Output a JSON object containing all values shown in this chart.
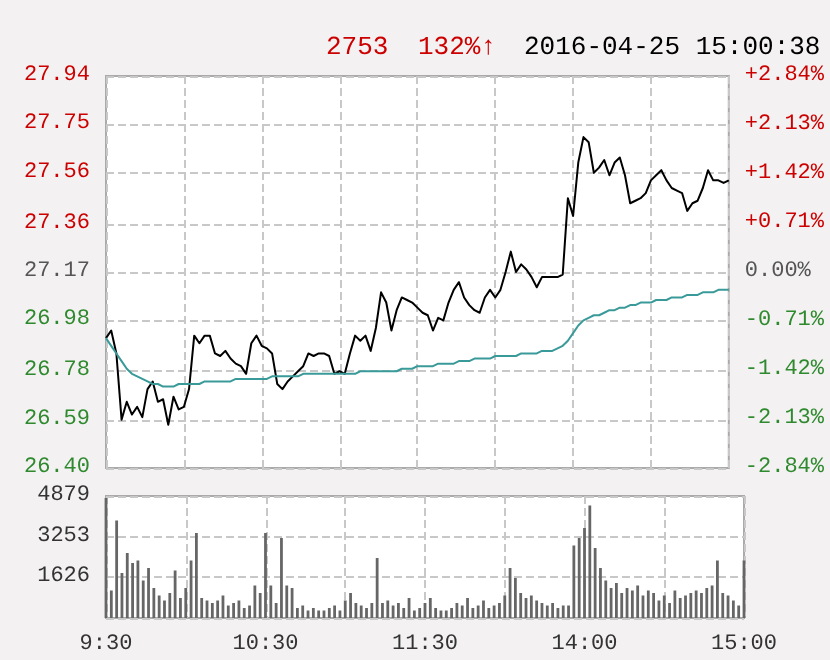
{
  "chart_data": [
    {
      "type": "line",
      "title": "2016-04-25 15:00:38",
      "annotations": [
        "2753",
        "132%↑"
      ],
      "categories": [
        null,
        null,
        null,
        null,
        null,
        null,
        null,
        null,
        null,
        null,
        null,
        null,
        null,
        null,
        null,
        null,
        null,
        null,
        null,
        null,
        null,
        null,
        null,
        null,
        null,
        null,
        null,
        null,
        null,
        null,
        null,
        null,
        null,
        null,
        null,
        null,
        null,
        null,
        null,
        null,
        null,
        null,
        null,
        null,
        null,
        null,
        null,
        null,
        null,
        null,
        null,
        null,
        null,
        null,
        null,
        null,
        null,
        null,
        null,
        null,
        null,
        null,
        null,
        null,
        null,
        null,
        null,
        null,
        null,
        null,
        null,
        null,
        null,
        null,
        null,
        null,
        null,
        null,
        null,
        null,
        null,
        null,
        null,
        null,
        null,
        null,
        null,
        null,
        null,
        null,
        null,
        null,
        null,
        null,
        null,
        null,
        null,
        null,
        null,
        null,
        null,
        null,
        null,
        null,
        null,
        null,
        null,
        null,
        null,
        null,
        null,
        null,
        null,
        null,
        null,
        null,
        null,
        null,
        null,
        null,
        null
      ],
      "ylim": [
        26.4,
        27.94
      ],
      "yticks": [
        {
          "value": 26.4,
          "label": "26.40"
        },
        26.59,
        26.78,
        26.98,
        27.17,
        27.36,
        27.56,
        27.75,
        27.94
      ],
      "y2lim": [
        -2.84,
        2.84
      ],
      "y2ticks": [
        {
          "value": -2.84,
          "label": "-2.84%"
        },
        {
          "value": -2.13,
          "label": "-2.13%"
        },
        {
          "value": -1.42,
          "label": "-1.42%"
        },
        {
          "value": -0.71,
          "label": "-0.71%"
        },
        {
          "value": 0,
          "label": "0.00%"
        },
        {
          "value": 0.71,
          "label": "+0.71%"
        },
        {
          "value": 1.42,
          "label": "+1.42%"
        },
        {
          "value": 2.13,
          "label": "+2.13%"
        },
        {
          "value": 2.84,
          "label": "+2.84%"
        }
      ],
      "tick_labels": "y",
      "grid": true,
      "series": [
        {
          "color": "#000000",
          "values": [
            26.91,
            26.94,
            26.85,
            26.59,
            26.66,
            26.61,
            26.64,
            26.6,
            26.71,
            26.74,
            26.66,
            26.67,
            26.57,
            26.68,
            26.63,
            26.64,
            26.71,
            26.92,
            26.89,
            26.92,
            26.92,
            26.85,
            26.84,
            26.86,
            26.83,
            26.81,
            26.8,
            26.77,
            26.89,
            26.92,
            26.88,
            26.87,
            26.85,
            26.73,
            26.71,
            26.74,
            26.76,
            26.78,
            26.8,
            26.85,
            26.84,
            26.85,
            26.85,
            26.84,
            26.77,
            26.78,
            26.77,
            26.85,
            26.92,
            26.9,
            26.92,
            26.86,
            26.95,
            27.09,
            27.05,
            26.94,
            27.02,
            27.07,
            27.06,
            27.05,
            27.03,
            27.01,
            27,
            26.94,
            26.99,
            26.98,
            27.05,
            27.1,
            27.13,
            27.07,
            27.04,
            27.02,
            27.01,
            27.07,
            27.1,
            27.07,
            27.1,
            27.17,
            27.25,
            27.17,
            27.2,
            27.18,
            27.15,
            27.11,
            27.15,
            27.15,
            27.15,
            27.15,
            27.16,
            27.46,
            27.39,
            27.6,
            27.7,
            27.68,
            27.56,
            27.58,
            27.61,
            27.55,
            27.6,
            27.62,
            27.55,
            27.44,
            27.45,
            27.46,
            27.48,
            27.53,
            27.55,
            27.57,
            27.53,
            27.5,
            27.49,
            27.48,
            27.41,
            27.44,
            27.45,
            27.5,
            27.57,
            27.53,
            27.53,
            27.52,
            27.53
          ]
        },
        {
          "color": "#3a9a9a",
          "values": [
            26.91,
            26.88,
            26.85,
            26.82,
            26.79,
            26.77,
            26.76,
            26.75,
            26.74,
            26.73,
            26.73,
            26.72,
            26.72,
            26.72,
            26.73,
            26.73,
            26.73,
            26.73,
            26.73,
            26.74,
            26.74,
            26.74,
            26.74,
            26.74,
            26.74,
            26.75,
            26.75,
            26.75,
            26.75,
            26.75,
            26.75,
            26.75,
            26.76,
            26.76,
            26.76,
            26.76,
            26.76,
            26.76,
            26.77,
            26.77,
            26.77,
            26.77,
            26.77,
            26.77,
            26.77,
            26.77,
            26.77,
            26.77,
            26.77,
            26.78,
            26.78,
            26.78,
            26.78,
            26.78,
            26.78,
            26.78,
            26.78,
            26.79,
            26.79,
            26.79,
            26.8,
            26.8,
            26.8,
            26.8,
            26.81,
            26.81,
            26.81,
            26.81,
            26.82,
            26.82,
            26.82,
            26.83,
            26.83,
            26.83,
            26.83,
            26.84,
            26.84,
            26.84,
            26.84,
            26.84,
            26.85,
            26.85,
            26.85,
            26.85,
            26.86,
            26.86,
            26.86,
            26.87,
            26.88,
            26.9,
            26.93,
            26.96,
            26.98,
            26.99,
            27,
            27,
            27.01,
            27.02,
            27.02,
            27.03,
            27.03,
            27.04,
            27.04,
            27.05,
            27.05,
            27.05,
            27.06,
            27.06,
            27.06,
            27.07,
            27.07,
            27.07,
            27.08,
            27.08,
            27.08,
            27.09,
            27.09,
            27.09,
            27.1,
            27.1,
            27.1
          ]
        }
      ]
    },
    {
      "type": "bar",
      "color": "#666666",
      "categories": [
        "9:30",
        null,
        null,
        null,
        null,
        null,
        null,
        null,
        null,
        null,
        null,
        null,
        null,
        null,
        null,
        null,
        null,
        null,
        null,
        null,
        null,
        null,
        null,
        null,
        null,
        null,
        null,
        null,
        null,
        null,
        "10:30",
        null,
        null,
        null,
        null,
        null,
        null,
        null,
        null,
        null,
        null,
        null,
        null,
        null,
        null,
        null,
        null,
        null,
        null,
        null,
        null,
        null,
        null,
        null,
        null,
        null,
        null,
        null,
        null,
        null,
        "11:30",
        null,
        null,
        null,
        null,
        null,
        null,
        null,
        null,
        null,
        null,
        null,
        null,
        null,
        null,
        null,
        null,
        null,
        null,
        null,
        null,
        null,
        null,
        null,
        null,
        null,
        null,
        null,
        null,
        null,
        "14:00",
        null,
        null,
        null,
        null,
        null,
        null,
        null,
        null,
        null,
        null,
        null,
        null,
        null,
        null,
        null,
        null,
        null,
        null,
        null,
        null,
        null,
        null,
        null,
        null,
        null,
        null,
        null,
        null,
        null,
        "15:00"
      ],
      "ylim": [
        0,
        4879
      ],
      "yticks": [
        {
          "value": 0,
          "label": null
        },
        1626,
        3253,
        4879
      ],
      "grid": true,
      "values": [
        4800,
        1100,
        3900,
        1800,
        2600,
        2200,
        2300,
        1500,
        2000,
        1200,
        900,
        700,
        1000,
        1900,
        800,
        1200,
        2300,
        3400,
        800,
        700,
        600,
        700,
        900,
        500,
        600,
        700,
        400,
        500,
        1300,
        1000,
        3400,
        1300,
        600,
        3200,
        1300,
        1200,
        400,
        500,
        300,
        400,
        300,
        300,
        400,
        500,
        300,
        700,
        1000,
        600,
        500,
        400,
        600,
        2400,
        600,
        700,
        500,
        600,
        400,
        800,
        300,
        400,
        600,
        800,
        400,
        300,
        300,
        400,
        600,
        500,
        800,
        400,
        500,
        700,
        400,
        500,
        600,
        900,
        2000,
        1600,
        1000,
        800,
        900,
        700,
        600,
        500,
        600,
        400,
        500,
        500,
        2900,
        3200,
        3600,
        4500,
        2800,
        2000,
        1500,
        1200,
        1400,
        1000,
        1200,
        1100,
        1300,
        900,
        1100,
        1000,
        700,
        900,
        600,
        1100,
        800,
        900,
        1000,
        1100,
        1000,
        1200,
        1300,
        2300,
        1000,
        900,
        700,
        500,
        2300
      ]
    }
  ]
}
